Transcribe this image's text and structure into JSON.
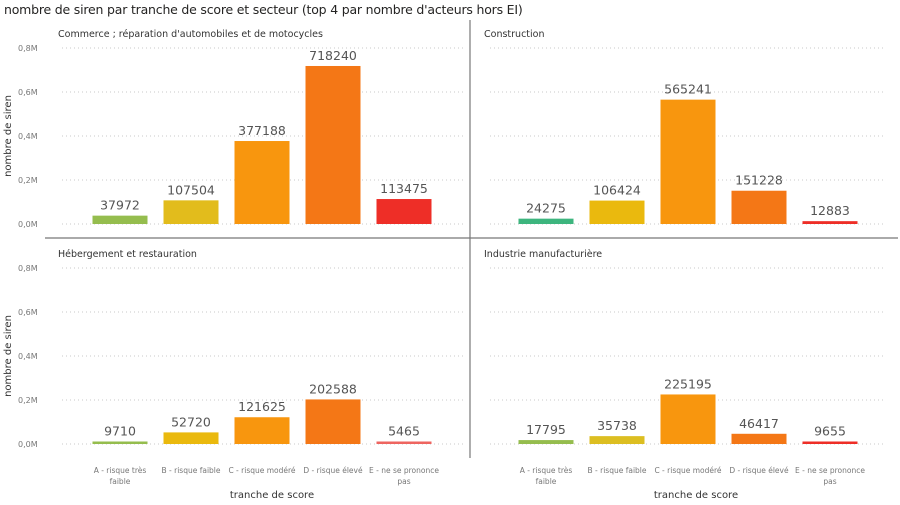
{
  "title": "nombre de siren par tranche de score et secteur (top 4 par nombre d'acteurs hors EI)",
  "chart_data": {
    "type": "bar",
    "title": "nombre de siren par tranche de score et secteur (top 4 par nombre d'acteurs hors EI)",
    "xlabel": "tranche de score",
    "ylabel": "nombre de siren",
    "ylim": [
      0,
      800000
    ],
    "yticks": [
      0,
      200000,
      400000,
      600000,
      800000
    ],
    "ytick_labels": [
      "0,0M",
      "0,2M",
      "0,4M",
      "0,6M",
      "0,8M"
    ],
    "grid": true,
    "categories": [
      "A - risque très faible",
      "B - risque faible",
      "C - risque modéré",
      "D - risque élevé",
      "E - ne se prononce pas"
    ],
    "category_lines": [
      [
        "A - risque très",
        "faible"
      ],
      [
        "B - risque faible"
      ],
      [
        "C - risque modéré"
      ],
      [
        "D - risque élevé"
      ],
      [
        "E - ne se prononce",
        "pas"
      ]
    ],
    "colors": [
      "#95BD4E",
      "#E2BC1C",
      "#F8960E",
      "#F47716",
      "#EE2E27"
    ],
    "panels": [
      {
        "name": "Commerce ; réparation d'automobiles et de motocycles",
        "values": [
          37972,
          107504,
          377188,
          718240,
          113475
        ],
        "colors": [
          "#95BD4E",
          "#E2BC1C",
          "#F8960E",
          "#F47716",
          "#EE2E27"
        ]
      },
      {
        "name": "Construction",
        "values": [
          24275,
          106424,
          565241,
          151228,
          12883
        ],
        "colors": [
          "#3DB57E",
          "#EAB90E",
          "#F8960E",
          "#F47716",
          "#EE2E27"
        ]
      },
      {
        "name": "Hébergement et restauration",
        "values": [
          9710,
          52720,
          121625,
          202588,
          5465
        ],
        "colors": [
          "#95BD4E",
          "#EAB90E",
          "#F8960E",
          "#F47716",
          "#EE6560"
        ]
      },
      {
        "name": "Industrie manufacturière",
        "values": [
          17795,
          35738,
          225195,
          46417,
          9655
        ],
        "colors": [
          "#95BD4E",
          "#DCBE21",
          "#F8960E",
          "#F47716",
          "#EE2E27"
        ]
      }
    ]
  }
}
